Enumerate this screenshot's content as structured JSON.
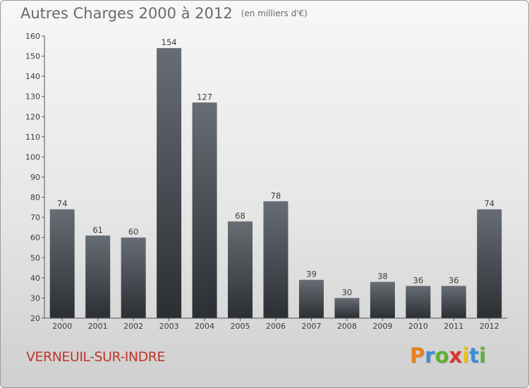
{
  "title": "Autres Charges 2000 à 2012",
  "subtitle": "(en milliers d'€)",
  "commune": "VERNEUIL-SUR-INDRE",
  "logo": {
    "letters": [
      "P",
      "r",
      "o",
      "x",
      "i",
      "t",
      "i"
    ],
    "colors": [
      "#e8801f",
      "#3a8fd6",
      "#5cb030",
      "#d9362c",
      "#e8c21f",
      "#3a8fd6",
      "#5cb030"
    ]
  },
  "colors": {
    "bar_top": "#676d74",
    "bar_bottom": "#2b2f34",
    "title": "#6a6a6a",
    "commune": "#c0362c"
  },
  "chart_data": {
    "type": "bar",
    "categories": [
      "2000",
      "2001",
      "2002",
      "2003",
      "2004",
      "2005",
      "2006",
      "2007",
      "2008",
      "2009",
      "2010",
      "2011",
      "2012"
    ],
    "values": [
      74,
      61,
      60,
      154,
      127,
      68,
      78,
      39,
      30,
      38,
      36,
      36,
      74
    ],
    "ylim": [
      20,
      160
    ],
    "yticks": [
      20,
      30,
      40,
      50,
      60,
      70,
      80,
      90,
      100,
      110,
      120,
      130,
      140,
      150,
      160
    ],
    "grid": false
  }
}
